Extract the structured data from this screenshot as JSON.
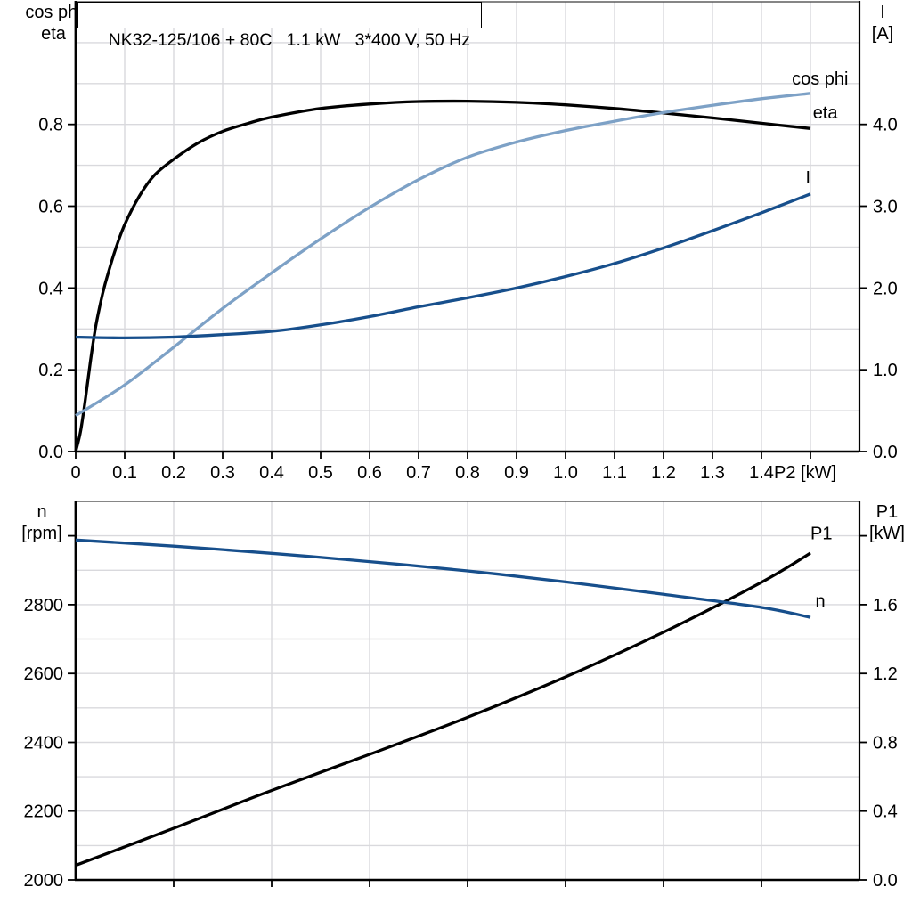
{
  "colors": {
    "black_curve": "#000000",
    "dark_blue_curve": "#174f8c",
    "light_blue_curve": "#7da1c6",
    "grid": "#d9d9dd",
    "axis": "#000000",
    "plot_border": "#454545",
    "background": "#ffffff"
  },
  "chart_data": [
    {
      "type": "line",
      "title": "NK32-125/106 + 80C   1.1 kW   3*400 V, 50 Hz",
      "grid": true,
      "legend_position": "curve-end-labels",
      "x_axis": {
        "label": "P2 [kW]",
        "range": [
          0,
          1.6
        ],
        "grid_step": 0.1,
        "tick_values": [
          0,
          0.1,
          0.2,
          0.3,
          0.4,
          0.5,
          0.6,
          0.7,
          0.8,
          0.9,
          1.0,
          1.1,
          1.2,
          1.3,
          1.4,
          1.5
        ],
        "tick_labels": [
          "0",
          "0.1",
          "0.2",
          "0.3",
          "0.4",
          "0.5",
          "0.6",
          "0.7",
          "0.8",
          "0.9",
          "1.0",
          "1.1",
          "1.2",
          "1.3",
          "1.4",
          ""
        ]
      },
      "left_axis": {
        "title_lines": [
          "cos phi",
          "eta"
        ],
        "range": [
          0,
          1.1
        ],
        "grid_step": 0.1,
        "tick_values": [
          0,
          0.2,
          0.4,
          0.6,
          0.8
        ],
        "tick_labels": [
          "0.0",
          "0.2",
          "0.4",
          "0.6",
          "0.8"
        ]
      },
      "right_axis": {
        "title_lines": [
          "I",
          "[A]"
        ],
        "range": [
          0,
          5.5
        ],
        "tick_values": [
          0,
          1,
          2,
          3,
          4
        ],
        "tick_labels": [
          "0.0",
          "1.0",
          "2.0",
          "3.0",
          "4.0"
        ]
      },
      "series": [
        {
          "name": "eta",
          "axis": "left",
          "color": "black_curve",
          "label": {
            "text": "eta",
            "x": 1.505,
            "y": 0.815,
            "color": "black_curve"
          },
          "points": [
            [
              0,
              0
            ],
            [
              0.01,
              0.05
            ],
            [
              0.02,
              0.13
            ],
            [
              0.03,
              0.22
            ],
            [
              0.04,
              0.3
            ],
            [
              0.05,
              0.36
            ],
            [
              0.06,
              0.41
            ],
            [
              0.08,
              0.49
            ],
            [
              0.1,
              0.555
            ],
            [
              0.13,
              0.625
            ],
            [
              0.16,
              0.675
            ],
            [
              0.2,
              0.715
            ],
            [
              0.25,
              0.755
            ],
            [
              0.3,
              0.783
            ],
            [
              0.35,
              0.802
            ],
            [
              0.4,
              0.818
            ],
            [
              0.5,
              0.839
            ],
            [
              0.6,
              0.85
            ],
            [
              0.7,
              0.856
            ],
            [
              0.8,
              0.857
            ],
            [
              0.9,
              0.854
            ],
            [
              1.0,
              0.848
            ],
            [
              1.1,
              0.839
            ],
            [
              1.2,
              0.828
            ],
            [
              1.3,
              0.816
            ],
            [
              1.4,
              0.803
            ],
            [
              1.5,
              0.79
            ]
          ]
        },
        {
          "name": "cos-phi",
          "axis": "left",
          "color": "light_blue_curve",
          "label": {
            "text": "cos phi",
            "x": 1.462,
            "y": 0.897,
            "color": "light_blue_curve"
          },
          "points": [
            [
              0,
              0.088
            ],
            [
              0.1,
              0.163
            ],
            [
              0.2,
              0.255
            ],
            [
              0.3,
              0.35
            ],
            [
              0.4,
              0.437
            ],
            [
              0.5,
              0.52
            ],
            [
              0.6,
              0.597
            ],
            [
              0.7,
              0.665
            ],
            [
              0.8,
              0.72
            ],
            [
              0.9,
              0.757
            ],
            [
              1.0,
              0.785
            ],
            [
              1.1,
              0.808
            ],
            [
              1.2,
              0.829
            ],
            [
              1.3,
              0.847
            ],
            [
              1.4,
              0.863
            ],
            [
              1.5,
              0.876
            ]
          ]
        },
        {
          "name": "I",
          "axis": "right",
          "color": "dark_blue_curve",
          "label": {
            "text": "I",
            "x": 1.49,
            "y": 3.28,
            "color": "dark_blue_curve"
          },
          "points": [
            [
              0,
              1.4
            ],
            [
              0.1,
              1.39
            ],
            [
              0.2,
              1.4
            ],
            [
              0.3,
              1.43
            ],
            [
              0.4,
              1.47
            ],
            [
              0.5,
              1.55
            ],
            [
              0.6,
              1.65
            ],
            [
              0.7,
              1.77
            ],
            [
              0.8,
              1.88
            ],
            [
              0.9,
              2.0
            ],
            [
              1.0,
              2.14
            ],
            [
              1.1,
              2.3
            ],
            [
              1.2,
              2.49
            ],
            [
              1.3,
              2.7
            ],
            [
              1.4,
              2.92
            ],
            [
              1.5,
              3.15
            ]
          ]
        }
      ]
    },
    {
      "type": "line",
      "title": "",
      "grid": true,
      "legend_position": "curve-end-labels",
      "x_axis": {
        "label": "",
        "range": [
          0,
          1.6
        ],
        "grid_step": 0.2,
        "tick_values": [
          0.2,
          0.4,
          0.6,
          0.8,
          1.0,
          1.2,
          1.4
        ],
        "tick_labels": [
          "",
          "",
          "",
          "",
          "",
          "",
          ""
        ]
      },
      "left_axis": {
        "title_lines": [
          "n",
          "[rpm]"
        ],
        "range": [
          2000,
          3100
        ],
        "grid_step": 100,
        "tick_values": [
          2000,
          2200,
          2400,
          2600,
          2800,
          3000
        ],
        "tick_labels": [
          "2000",
          "2200",
          "2400",
          "2600",
          "2800",
          ""
        ]
      },
      "right_axis": {
        "title_lines": [
          "P1",
          "[kW]"
        ],
        "range": [
          0,
          2.2
        ],
        "tick_values": [
          0,
          0.4,
          0.8,
          1.2,
          1.6,
          2.0
        ],
        "tick_labels": [
          "0.0",
          "0.4",
          "0.8",
          "1.2",
          "1.6",
          ""
        ]
      },
      "series": [
        {
          "name": "P1",
          "axis": "right",
          "color": "black_curve",
          "label": {
            "text": "P1",
            "x": 1.5,
            "y": 1.98,
            "color": "black_curve"
          },
          "points": [
            [
              0,
              0.085
            ],
            [
              0.2,
              0.3
            ],
            [
              0.4,
              0.52
            ],
            [
              0.6,
              0.73
            ],
            [
              0.8,
              0.945
            ],
            [
              1.0,
              1.18
            ],
            [
              1.2,
              1.44
            ],
            [
              1.4,
              1.73
            ],
            [
              1.5,
              1.9
            ]
          ]
        },
        {
          "name": "n",
          "axis": "left",
          "color": "dark_blue_curve",
          "label": {
            "text": "n",
            "x": 1.51,
            "y": 2793,
            "color": "dark_blue_curve"
          },
          "points": [
            [
              0,
              2988
            ],
            [
              0.2,
              2970
            ],
            [
              0.4,
              2949
            ],
            [
              0.6,
              2925
            ],
            [
              0.8,
              2898
            ],
            [
              1.0,
              2866
            ],
            [
              1.2,
              2830
            ],
            [
              1.4,
              2792
            ],
            [
              1.5,
              2763
            ]
          ]
        }
      ]
    }
  ]
}
